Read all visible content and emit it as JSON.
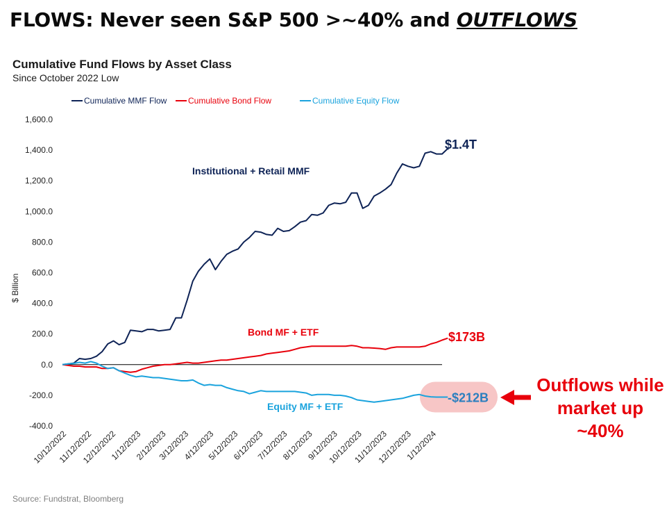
{
  "headline": {
    "prefix": "FLOWS: Never seen S&P 500 >~40% and ",
    "emphasis": "OUTFLOWS"
  },
  "source": "Source: Fundstrat, Bloomberg",
  "callout": {
    "line1": "Outflows while",
    "line2": "market up ~40%",
    "color": "#e8000b",
    "highlight_color": "#f7c6c6"
  },
  "chart_data": {
    "type": "line",
    "title": "Cumulative Fund Flows by Asset Class",
    "subtitle": "Since October 2022 Low",
    "ylabel": "$ Billion",
    "xlabel": "",
    "ylim": [
      -400,
      1600
    ],
    "yticks": [
      -400,
      -200,
      0,
      200,
      400,
      600,
      800,
      1000,
      1200,
      1400,
      1600
    ],
    "ytick_labels": [
      "-400.0",
      "-200.0",
      "0.0",
      "200.0",
      "400.0",
      "600.0",
      "800.0",
      "1,000.0",
      "1,200.0",
      "1,400.0",
      "1,600.0"
    ],
    "x_range": [
      0,
      67
    ],
    "xtick_labels": [
      "10/12/2022",
      "11/12/2022",
      "12/12/2022",
      "1/12/2023",
      "2/12/2023",
      "3/12/2023",
      "4/12/2023",
      "5/12/2023",
      "6/12/2023",
      "7/12/2023",
      "8/12/2023",
      "9/12/2023",
      "10/12/2023",
      "11/12/2023",
      "12/12/2023",
      "1/12/2024"
    ],
    "xtick_positions": [
      0,
      4.43,
      8.71,
      13.14,
      17.57,
      21.57,
      26,
      30.29,
      34.71,
      39,
      43.43,
      47.86,
      52.14,
      56.57,
      60.86,
      65.29
    ],
    "legend_position": "top",
    "series": [
      {
        "name": "Cumulative MMF Flow",
        "color": "#0e2356",
        "values": [
          0,
          5,
          10,
          40,
          35,
          40,
          55,
          85,
          135,
          155,
          130,
          145,
          225,
          220,
          215,
          230,
          230,
          220,
          225,
          230,
          305,
          305,
          420,
          545,
          610,
          655,
          690,
          620,
          675,
          720,
          740,
          755,
          800,
          830,
          870,
          865,
          850,
          845,
          890,
          870,
          875,
          900,
          930,
          940,
          980,
          975,
          990,
          1040,
          1055,
          1050,
          1060,
          1120,
          1120,
          1020,
          1040,
          1100,
          1120,
          1145,
          1175,
          1250,
          1310,
          1295,
          1285,
          1295,
          1380,
          1390,
          1375,
          1375,
          1410
        ],
        "series_label": "Institutional + Retail MMF",
        "end_label": "$1.4T"
      },
      {
        "name": "Cumulative Bond Flow",
        "color": "#e8000b",
        "values": [
          0,
          -5,
          -10,
          -10,
          -15,
          -15,
          -15,
          -25,
          -25,
          -20,
          -40,
          -45,
          -50,
          -45,
          -30,
          -20,
          -10,
          -5,
          0,
          0,
          5,
          10,
          15,
          10,
          10,
          15,
          20,
          25,
          30,
          30,
          35,
          40,
          45,
          50,
          55,
          60,
          70,
          75,
          80,
          85,
          90,
          100,
          110,
          115,
          120,
          120,
          120,
          120,
          120,
          120,
          120,
          125,
          120,
          110,
          110,
          108,
          105,
          100,
          110,
          115,
          115,
          115,
          115,
          115,
          120,
          135,
          145,
          160,
          173
        ],
        "series_label": "Bond MF + ETF",
        "end_label": "$173B"
      },
      {
        "name": "Cumulative Equity Flow",
        "color": "#1aa3dd",
        "values": [
          0,
          5,
          8,
          15,
          10,
          20,
          10,
          -10,
          -25,
          -20,
          -40,
          -55,
          -70,
          -80,
          -75,
          -80,
          -85,
          -85,
          -90,
          -95,
          -100,
          -105,
          -105,
          -100,
          -120,
          -135,
          -130,
          -135,
          -135,
          -150,
          -160,
          -170,
          -175,
          -190,
          -180,
          -170,
          -175,
          -175,
          -175,
          -175,
          -175,
          -175,
          -180,
          -185,
          -200,
          -195,
          -195,
          -195,
          -200,
          -200,
          -205,
          -215,
          -230,
          -235,
          -240,
          -245,
          -240,
          -235,
          -230,
          -225,
          -220,
          -210,
          -200,
          -195,
          -205,
          -210,
          -212,
          -212,
          -212
        ],
        "series_label": "Equity MF + ETF",
        "end_label": "-$212B"
      }
    ]
  }
}
